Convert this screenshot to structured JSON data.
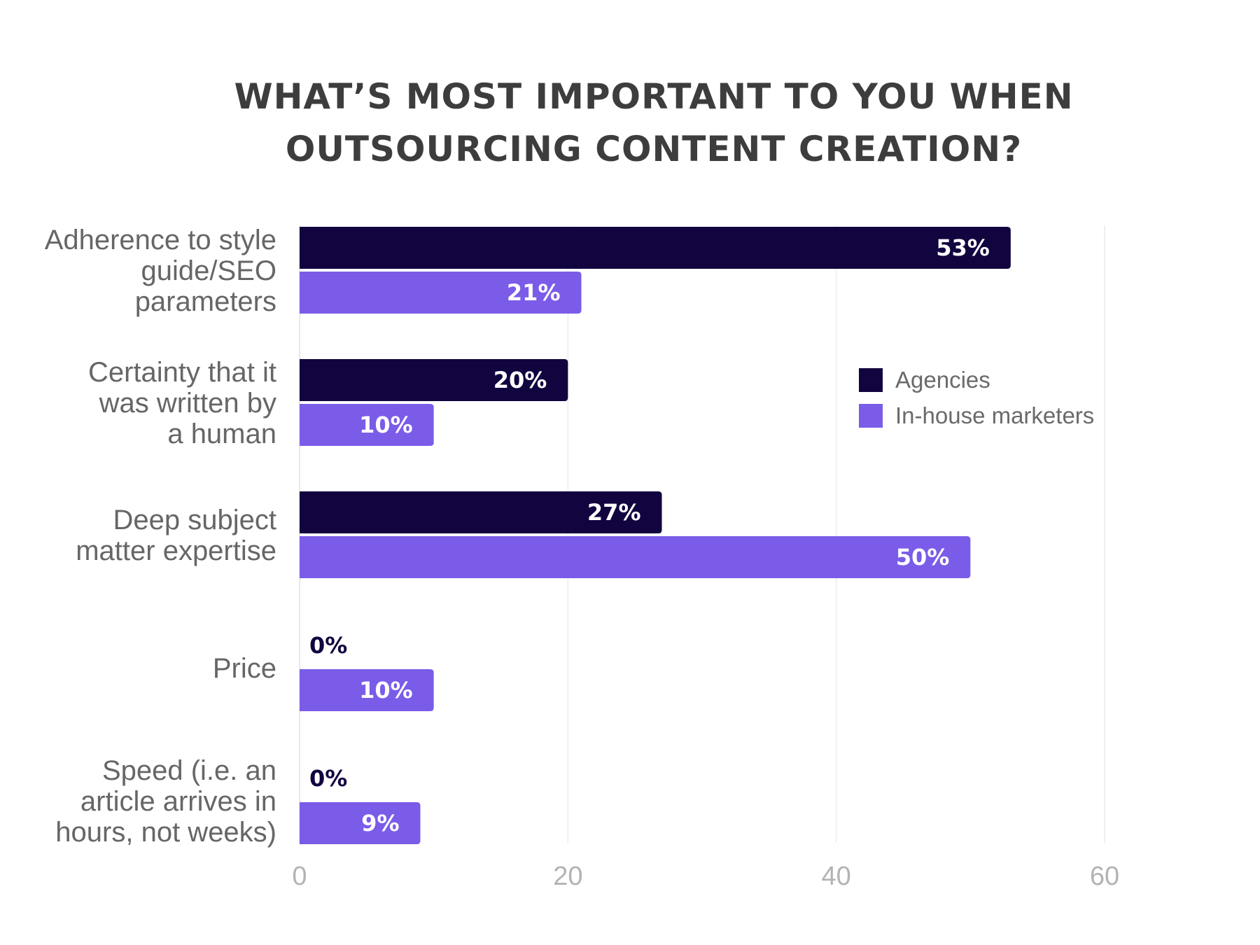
{
  "chart_data": {
    "type": "bar",
    "orientation": "horizontal",
    "title_lines": [
      "WHAT’S MOST IMPORTANT TO YOU WHEN",
      "OUTSOURCING CONTENT CREATION?"
    ],
    "categories": [
      [
        "Adherence to style",
        "guide/SEO",
        "parameters"
      ],
      [
        "Certainty that it",
        "was written by",
        "a human"
      ],
      [
        "Deep subject",
        "matter expertise"
      ],
      [
        "Price"
      ],
      [
        "Speed (i.e. an",
        "article arrives in",
        "hours, not weeks)"
      ]
    ],
    "series": [
      {
        "name": "Agencies",
        "color": "#12043f",
        "values": [
          53,
          20,
          27,
          0,
          0
        ],
        "labels": [
          "53%",
          "20%",
          "27%",
          "0%",
          "0%"
        ]
      },
      {
        "name": "In-house marketers",
        "color": "#7b5ce8",
        "values": [
          21,
          10,
          50,
          10,
          9
        ],
        "labels": [
          "21%",
          "10%",
          "50%",
          "10%",
          "9%"
        ]
      }
    ],
    "xlim": [
      0,
      60
    ],
    "xticks": [
      0,
      20,
      40,
      60
    ],
    "xtick_labels": [
      "0",
      "20",
      "40",
      "60"
    ],
    "xlabel": "",
    "ylabel": "",
    "grid": true,
    "legend_position": "right"
  }
}
